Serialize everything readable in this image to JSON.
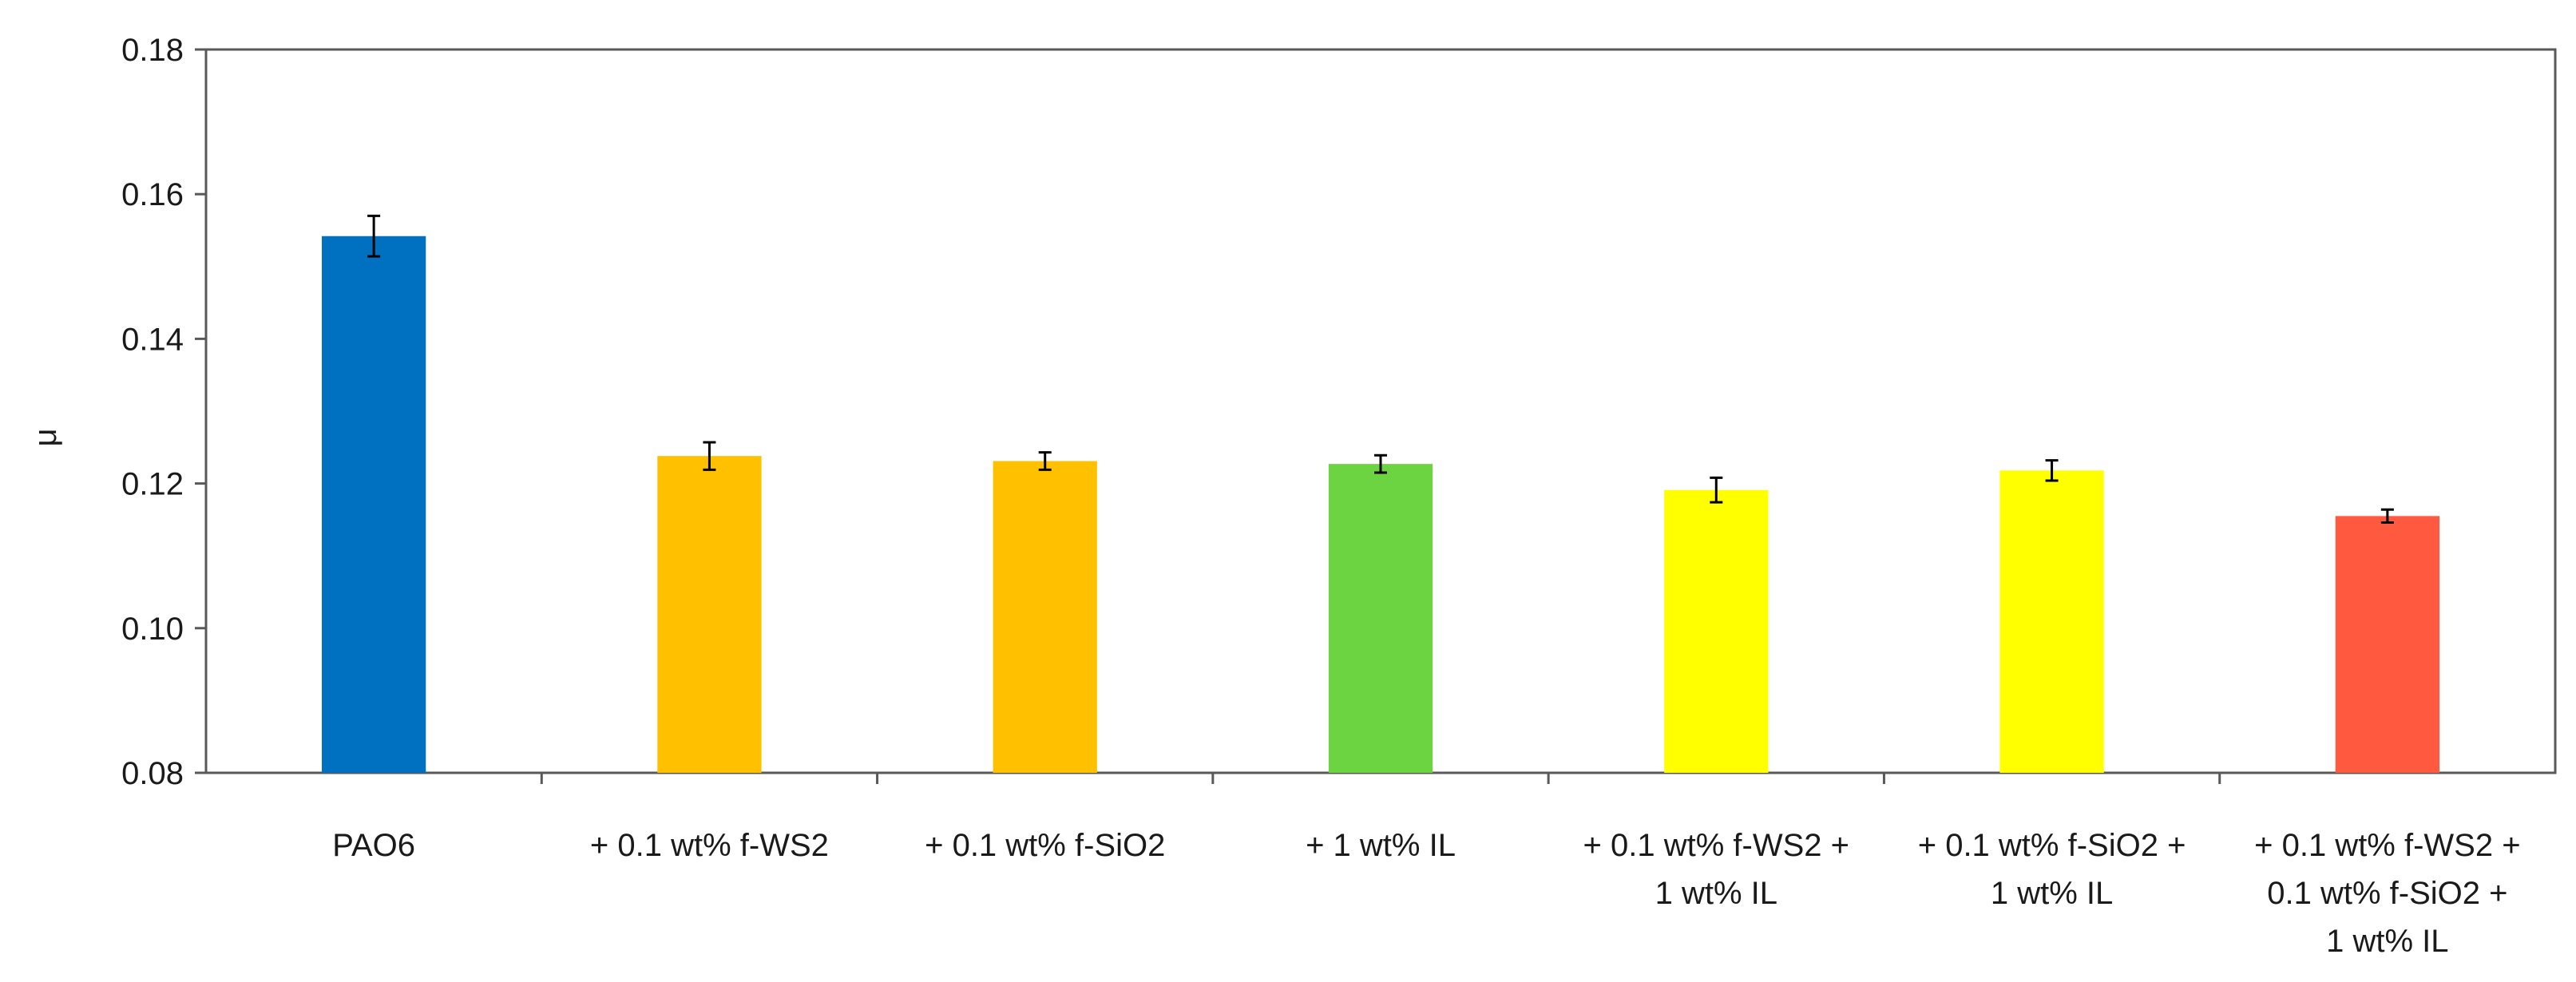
{
  "chart_data": {
    "type": "bar",
    "ylabel": "μ",
    "xlabel": "",
    "title": "",
    "ylim": [
      0.08,
      0.18
    ],
    "yticks": [
      "0.08",
      "0.10",
      "0.12",
      "0.14",
      "0.16",
      "0.18"
    ],
    "yticks_values": [
      0.08,
      0.1,
      0.12,
      0.14,
      0.16,
      0.18
    ],
    "grid": false,
    "categories": [
      [
        "PAO6"
      ],
      [
        "+ 0.1 wt% f-WS2"
      ],
      [
        "+ 0.1 wt% f-SiO2"
      ],
      [
        "+ 1 wt% IL"
      ],
      [
        "+ 0.1 wt% f-WS2 +",
        "1 wt% IL"
      ],
      [
        "+ 0.1 wt% f-SiO2 +",
        "1 wt% IL"
      ],
      [
        "+ 0.1 wt% f-WS2 +",
        "0.1 wt% f-SiO2 +",
        "1 wt% IL"
      ]
    ],
    "values": [
      0.1542,
      0.1238,
      0.1231,
      0.1227,
      0.1191,
      0.1218,
      0.1155
    ],
    "errors": [
      0.0028,
      0.0019,
      0.0012,
      0.0012,
      0.0017,
      0.0014,
      0.0009
    ],
    "colors": [
      "#0070C0",
      "#FFC000",
      "#FFC000",
      "#6CD341",
      "#FFFF00",
      "#FFFF00",
      "#FF5940"
    ]
  }
}
